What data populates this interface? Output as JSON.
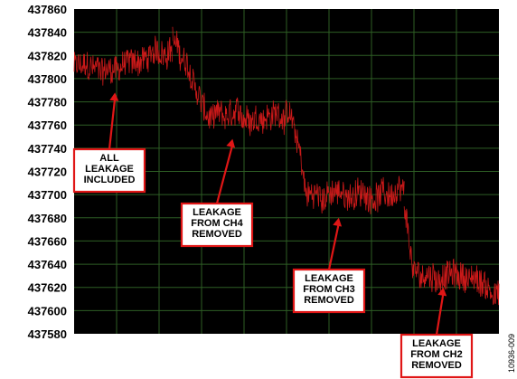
{
  "chart_data": {
    "type": "line",
    "background": "#000000",
    "grid": true,
    "grid_color": "#2e5e25",
    "line_color": "#d41a1a",
    "xlabel": "",
    "ylabel": "",
    "ylim": [
      437580,
      437860
    ],
    "y_ticks": [
      "437860",
      "437840",
      "437820",
      "437800",
      "437780",
      "437760",
      "437740",
      "437720",
      "437700",
      "437680",
      "437660",
      "437640",
      "437620",
      "437600",
      "437580"
    ],
    "x_gridlines": 10,
    "noise_amplitude": 12,
    "segments": [
      {
        "x": [
          0,
          1.0,
          2.3,
          3.0
        ],
        "y": [
          437810,
          437808,
          437818,
          437828
        ]
      },
      {
        "x": [
          3.0,
          3.6,
          4.1,
          6.6
        ],
        "y": [
          437835,
          437800,
          437765,
          437770
        ]
      },
      {
        "x": [
          6.6,
          6.9,
          7.1,
          9.8,
          10.1
        ],
        "y": [
          437768,
          437740,
          437700,
          437700,
          437700
        ]
      },
      {
        "x": [
          10.1,
          10.4,
          12.0,
          13.0
        ],
        "y": [
          437690,
          437630,
          437630,
          437615
        ]
      }
    ],
    "annotations": [
      {
        "lines": [
          "ALL",
          "LEAKAGE",
          "INCLUDED"
        ],
        "point_x": 1.25,
        "point_y": 437788
      },
      {
        "lines": [
          "LEAKAGE",
          "FROM CH4",
          "REMOVED"
        ],
        "point_x": 4.85,
        "point_y": 437748
      },
      {
        "lines": [
          "LEAKAGE",
          "FROM CH3",
          "REMOVED"
        ],
        "point_x": 8.1,
        "point_y": 437680
      },
      {
        "lines": [
          "LEAKAGE",
          "FROM CH2",
          "REMOVED"
        ],
        "point_x": 11.3,
        "point_y": 437620
      }
    ],
    "figure_id": "10936-009"
  }
}
